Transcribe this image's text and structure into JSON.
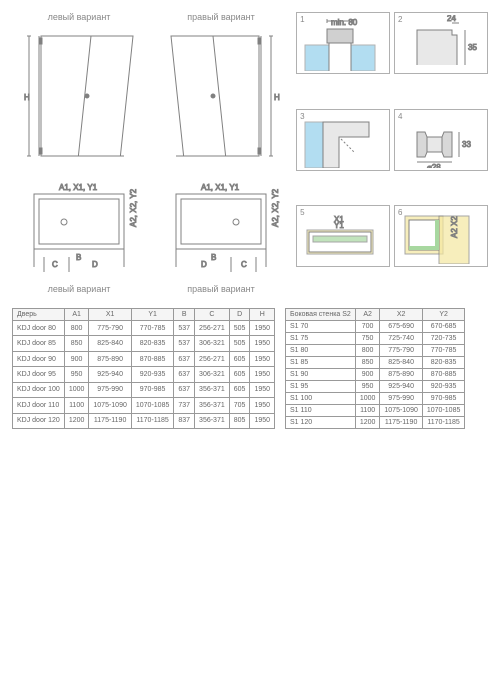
{
  "labels": {
    "left_variant": "левый вариант",
    "right_variant": "правый вариант",
    "min80": "min. 80"
  },
  "colors": {
    "stroke": "#808080",
    "light": "#bbbbbb",
    "accent": "#7fc8e8",
    "green": "#a8d8a0",
    "yellow": "#f5e8a0"
  },
  "doors_dims": {
    "a1": "A1",
    "x1": "X1",
    "y1": "Y1",
    "h": "H",
    "b": "B",
    "c": "C",
    "d": "D",
    "a2": "A2",
    "x2": "X2",
    "y2": "Y2"
  },
  "table1": {
    "headers": [
      "Дверь",
      "A1",
      "X1",
      "Y1",
      "B",
      "C",
      "D",
      "H"
    ],
    "rows": [
      [
        "KDJ door 80",
        "800",
        "775-790",
        "770-785",
        "537",
        "256-271",
        "505",
        "1950"
      ],
      [
        "KDJ door 85",
        "850",
        "825-840",
        "820-835",
        "537",
        "306-321",
        "505",
        "1950"
      ],
      [
        "KDJ door 90",
        "900",
        "875-890",
        "870-885",
        "637",
        "256-271",
        "605",
        "1950"
      ],
      [
        "KDJ door 95",
        "950",
        "925-940",
        "920-935",
        "637",
        "306-321",
        "605",
        "1950"
      ],
      [
        "KDJ door 100",
        "1000",
        "975-990",
        "970-985",
        "637",
        "356-371",
        "605",
        "1950"
      ],
      [
        "KDJ door 110",
        "1100",
        "1075-1090",
        "1070-1085",
        "737",
        "356-371",
        "705",
        "1950"
      ],
      [
        "KDJ door 120",
        "1200",
        "1175-1190",
        "1170-1185",
        "837",
        "356-371",
        "805",
        "1950"
      ]
    ]
  },
  "table2": {
    "headers": [
      "Боковая стенка S2",
      "A2",
      "X2",
      "Y2"
    ],
    "rows": [
      [
        "S1 70",
        "700",
        "675-690",
        "670-685"
      ],
      [
        "S1 75",
        "750",
        "725-740",
        "720-735"
      ],
      [
        "S1 80",
        "800",
        "775-790",
        "770-785"
      ],
      [
        "S1 85",
        "850",
        "825-840",
        "820-835"
      ],
      [
        "S1 90",
        "900",
        "875-890",
        "870-885"
      ],
      [
        "S1 95",
        "950",
        "925-940",
        "920-935"
      ],
      [
        "S1 100",
        "1000",
        "975-990",
        "970-985"
      ],
      [
        "S1 110",
        "1100",
        "1075-1090",
        "1070-1085"
      ],
      [
        "S1 120",
        "1200",
        "1175-1190",
        "1170-1185"
      ]
    ]
  }
}
